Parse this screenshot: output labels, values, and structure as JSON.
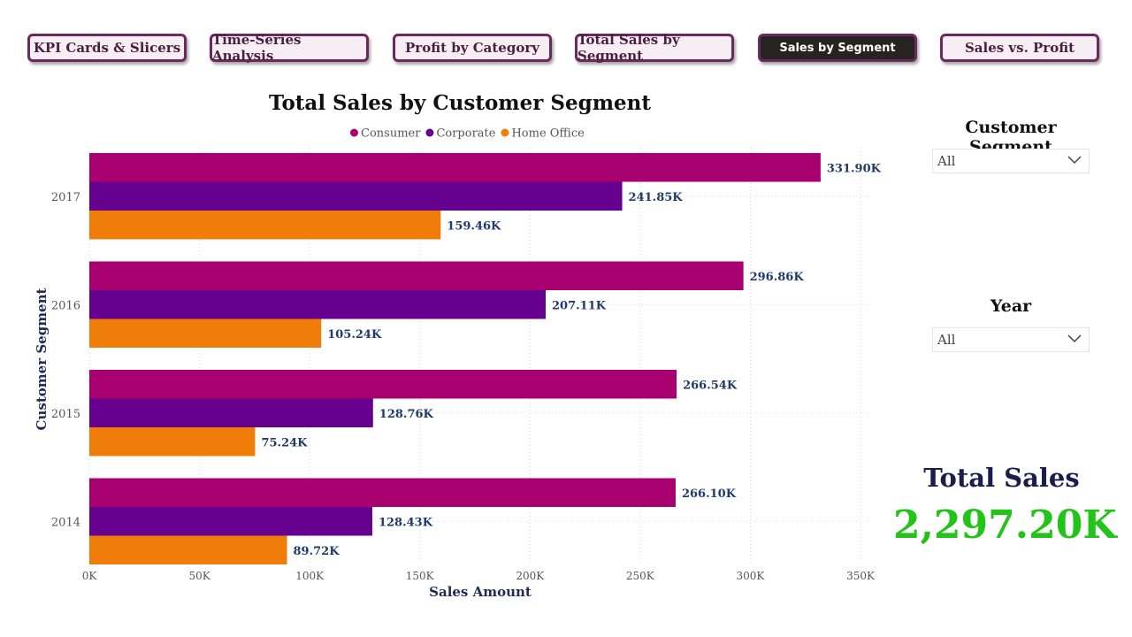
{
  "nav": {
    "buttons": [
      {
        "label": "KPI Cards & Slicers"
      },
      {
        "label": "Time-Series Analysis"
      },
      {
        "label": "Profit by Category"
      },
      {
        "label": "Total Sales by Segment"
      },
      {
        "label": "Sales by Segment",
        "active": true
      },
      {
        "label": "Sales vs. Profit"
      }
    ]
  },
  "slicers": {
    "segment": {
      "title": "Customer Segment",
      "value": "All"
    },
    "year": {
      "title": "Year",
      "value": "All"
    }
  },
  "kpi": {
    "title": "Total Sales",
    "value": "2,297.20K"
  },
  "chart_data": {
    "type": "bar",
    "orientation": "horizontal",
    "title": "Total Sales by Customer Segment",
    "xlabel": "Sales Amount",
    "ylabel": "Customer Segment",
    "xlim": [
      0,
      350000
    ],
    "x_ticks": [
      "0K",
      "50K",
      "100K",
      "150K",
      "200K",
      "250K",
      "300K",
      "350K"
    ],
    "grid": true,
    "legend_position": "top-center",
    "categories": [
      "2017",
      "2016",
      "2015",
      "2014"
    ],
    "series": [
      {
        "name": "Consumer",
        "color": "#a8006e",
        "values": [
          331900,
          296860,
          266540,
          266100
        ],
        "labels": [
          "331.90K",
          "296.86K",
          "266.54K",
          "266.10K"
        ]
      },
      {
        "name": "Corporate",
        "color": "#66018f",
        "values": [
          241850,
          207110,
          128760,
          128430
        ],
        "labels": [
          "241.85K",
          "207.11K",
          "128.76K",
          "128.43K"
        ]
      },
      {
        "name": "Home Office",
        "color": "#f07c0a",
        "values": [
          159460,
          105240,
          75240,
          89720
        ],
        "labels": [
          "159.46K",
          "105.24K",
          "75.24K",
          "89.72K"
        ]
      }
    ]
  }
}
